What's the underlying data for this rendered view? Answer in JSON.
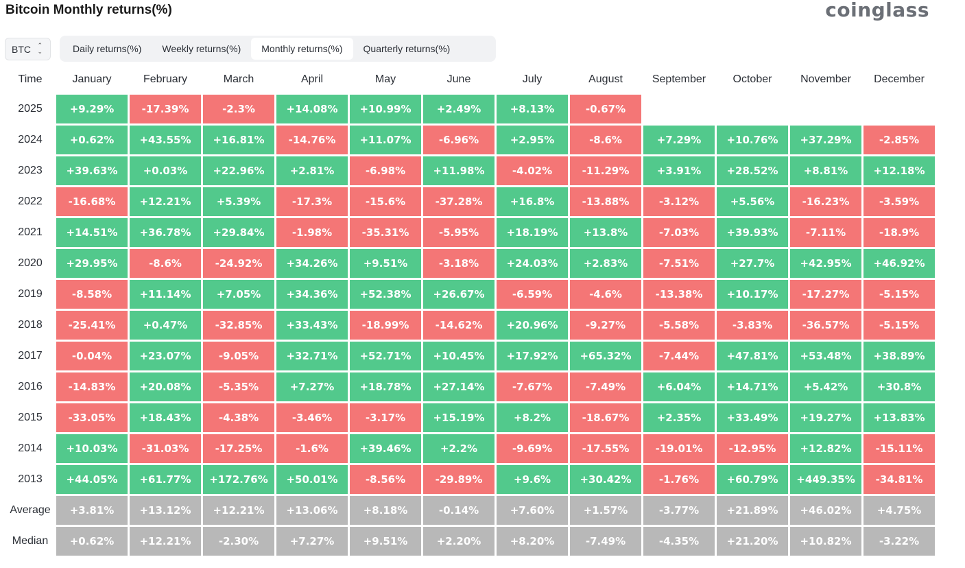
{
  "header": {
    "title": "Bitcoin Monthly returns(%)",
    "logo": "coinglass"
  },
  "controls": {
    "symbol": "BTC",
    "symbol_chevron_up": "⌃",
    "symbol_chevron_down": "⌄",
    "tabs": [
      "Daily returns(%)",
      "Weekly returns(%)",
      "Monthly returns(%)",
      "Quarterly returns(%)"
    ],
    "active_tab": 2
  },
  "colors": {
    "positive": "#52c98c",
    "negative": "#f47676",
    "stat": "#b8b8b8"
  },
  "table": {
    "time_header": "Time",
    "months": [
      "January",
      "February",
      "March",
      "April",
      "May",
      "June",
      "July",
      "August",
      "September",
      "October",
      "November",
      "December"
    ],
    "rows": [
      {
        "label": "2025",
        "values": [
          "+9.29%",
          "-17.39%",
          "-2.3%",
          "+14.08%",
          "+10.99%",
          "+2.49%",
          "+8.13%",
          "-0.67%",
          "",
          "",
          "",
          ""
        ]
      },
      {
        "label": "2024",
        "values": [
          "+0.62%",
          "+43.55%",
          "+16.81%",
          "-14.76%",
          "+11.07%",
          "-6.96%",
          "+2.95%",
          "-8.6%",
          "+7.29%",
          "+10.76%",
          "+37.29%",
          "-2.85%"
        ]
      },
      {
        "label": "2023",
        "values": [
          "+39.63%",
          "+0.03%",
          "+22.96%",
          "+2.81%",
          "-6.98%",
          "+11.98%",
          "-4.02%",
          "-11.29%",
          "+3.91%",
          "+28.52%",
          "+8.81%",
          "+12.18%"
        ]
      },
      {
        "label": "2022",
        "values": [
          "-16.68%",
          "+12.21%",
          "+5.39%",
          "-17.3%",
          "-15.6%",
          "-37.28%",
          "+16.8%",
          "-13.88%",
          "-3.12%",
          "+5.56%",
          "-16.23%",
          "-3.59%"
        ]
      },
      {
        "label": "2021",
        "values": [
          "+14.51%",
          "+36.78%",
          "+29.84%",
          "-1.98%",
          "-35.31%",
          "-5.95%",
          "+18.19%",
          "+13.8%",
          "-7.03%",
          "+39.93%",
          "-7.11%",
          "-18.9%"
        ]
      },
      {
        "label": "2020",
        "values": [
          "+29.95%",
          "-8.6%",
          "-24.92%",
          "+34.26%",
          "+9.51%",
          "-3.18%",
          "+24.03%",
          "+2.83%",
          "-7.51%",
          "+27.7%",
          "+42.95%",
          "+46.92%"
        ]
      },
      {
        "label": "2019",
        "values": [
          "-8.58%",
          "+11.14%",
          "+7.05%",
          "+34.36%",
          "+52.38%",
          "+26.67%",
          "-6.59%",
          "-4.6%",
          "-13.38%",
          "+10.17%",
          "-17.27%",
          "-5.15%"
        ]
      },
      {
        "label": "2018",
        "values": [
          "-25.41%",
          "+0.47%",
          "-32.85%",
          "+33.43%",
          "-18.99%",
          "-14.62%",
          "+20.96%",
          "-9.27%",
          "-5.58%",
          "-3.83%",
          "-36.57%",
          "-5.15%"
        ]
      },
      {
        "label": "2017",
        "values": [
          "-0.04%",
          "+23.07%",
          "-9.05%",
          "+32.71%",
          "+52.71%",
          "+10.45%",
          "+17.92%",
          "+65.32%",
          "-7.44%",
          "+47.81%",
          "+53.48%",
          "+38.89%"
        ]
      },
      {
        "label": "2016",
        "values": [
          "-14.83%",
          "+20.08%",
          "-5.35%",
          "+7.27%",
          "+18.78%",
          "+27.14%",
          "-7.67%",
          "-7.49%",
          "+6.04%",
          "+14.71%",
          "+5.42%",
          "+30.8%"
        ]
      },
      {
        "label": "2015",
        "values": [
          "-33.05%",
          "+18.43%",
          "-4.38%",
          "-3.46%",
          "-3.17%",
          "+15.19%",
          "+8.2%",
          "-18.67%",
          "+2.35%",
          "+33.49%",
          "+19.27%",
          "+13.83%"
        ]
      },
      {
        "label": "2014",
        "values": [
          "+10.03%",
          "-31.03%",
          "-17.25%",
          "-1.6%",
          "+39.46%",
          "+2.2%",
          "-9.69%",
          "-17.55%",
          "-19.01%",
          "-12.95%",
          "+12.82%",
          "-15.11%"
        ]
      },
      {
        "label": "2013",
        "values": [
          "+44.05%",
          "+61.77%",
          "+172.76%",
          "+50.01%",
          "-8.56%",
          "-29.89%",
          "+9.6%",
          "+30.42%",
          "-1.76%",
          "+60.79%",
          "+449.35%",
          "-34.81%"
        ]
      }
    ],
    "stats": [
      {
        "label": "Average",
        "values": [
          "+3.81%",
          "+13.12%",
          "+12.21%",
          "+13.06%",
          "+8.18%",
          "-0.14%",
          "+7.60%",
          "+1.57%",
          "-3.77%",
          "+21.89%",
          "+46.02%",
          "+4.75%"
        ]
      },
      {
        "label": "Median",
        "values": [
          "+0.62%",
          "+12.21%",
          "-2.30%",
          "+7.27%",
          "+9.51%",
          "+2.20%",
          "+8.20%",
          "-7.49%",
          "-4.35%",
          "+21.20%",
          "+10.82%",
          "-3.22%"
        ]
      }
    ]
  }
}
